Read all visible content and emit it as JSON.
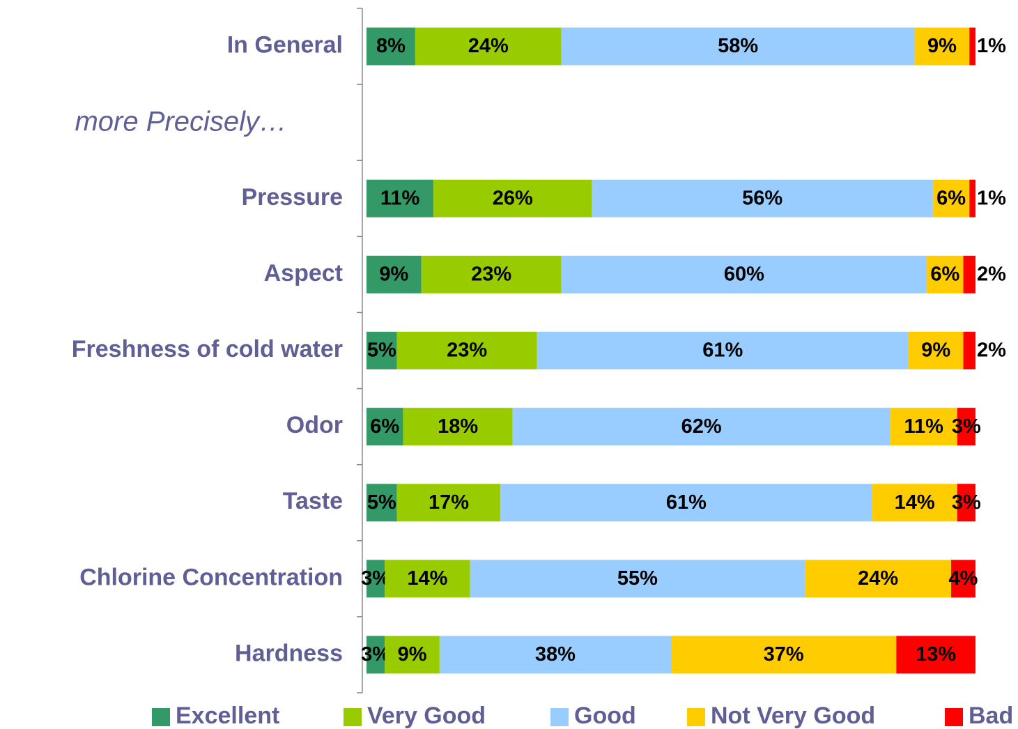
{
  "chart_data": {
    "type": "stacked-bar-horizontal",
    "annotations": [
      "more Precisely…"
    ],
    "categories": [
      "In General",
      null,
      "Pressure",
      "Aspect",
      "Freshness of cold water",
      "Odor",
      "Taste",
      "Chlorine Concentration",
      "Hardness"
    ],
    "xlim": [
      0,
      100
    ],
    "legend": "bottom",
    "series": [
      {
        "name": "Excellent",
        "color": "#339966",
        "values": [
          8,
          null,
          11,
          9,
          5,
          6,
          5,
          3,
          3
        ],
        "value_labels": [
          "8%",
          null,
          "11%",
          "9%",
          "5%",
          "6%",
          "5%",
          "3%",
          "3%"
        ]
      },
      {
        "name": "Very Good",
        "color": "#99cc00",
        "values": [
          24,
          null,
          26,
          23,
          23,
          18,
          17,
          14,
          9
        ],
        "value_labels": [
          "24%",
          null,
          "26%",
          "23%",
          "23%",
          "18%",
          "17%",
          "14%",
          "9%"
        ]
      },
      {
        "name": "Good",
        "color": "#99ccff",
        "values": [
          58,
          null,
          56,
          60,
          61,
          62,
          61,
          55,
          38
        ],
        "value_labels": [
          "58%",
          null,
          "56%",
          "60%",
          "61%",
          "62%",
          "61%",
          "55%",
          "38%"
        ]
      },
      {
        "name": "Not Very Good",
        "color": "#ffcc00",
        "values": [
          9,
          null,
          6,
          6,
          9,
          11,
          14,
          24,
          37
        ],
        "value_labels": [
          "9%",
          null,
          "6%",
          "6%",
          "9%",
          "11%",
          "14%",
          "24%",
          "37%"
        ]
      },
      {
        "name": "Bad",
        "color": "#ff0000",
        "values": [
          1,
          null,
          1,
          2,
          2,
          3,
          3,
          4,
          13
        ],
        "value_labels": [
          "1%",
          null,
          "1%",
          "2%",
          "2%",
          "3%",
          "3%",
          "4%",
          "13%"
        ]
      }
    ]
  }
}
